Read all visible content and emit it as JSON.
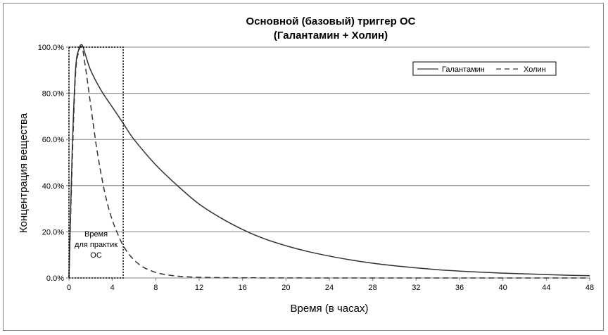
{
  "chart_data": {
    "type": "line",
    "title": "Основной (базовый) триггер ОС",
    "subtitle": "(Галантамин + Холин)",
    "xlabel": "Время (в часах)",
    "ylabel": "Концентрация вещества",
    "xlim": [
      0,
      48
    ],
    "ylim": [
      0,
      100
    ],
    "x_ticks": [
      "0",
      "4",
      "8",
      "12",
      "16",
      "20",
      "24",
      "28",
      "32",
      "36",
      "40",
      "44",
      "48"
    ],
    "y_ticks": [
      "0.0%",
      "20.0%",
      "40.0%",
      "60.0%",
      "80.0%",
      "100.0%"
    ],
    "grid": "horizontal",
    "legend_position": "top-right",
    "series": [
      {
        "name": "Галантамин",
        "style": "solid",
        "color": "#333333",
        "x": [
          0,
          0.3,
          0.6,
          0.9,
          1.2,
          1.5,
          2,
          3,
          4,
          5,
          6,
          8,
          10,
          12,
          14,
          16,
          18,
          20,
          22,
          24,
          26,
          28,
          30,
          32,
          34,
          36,
          38,
          40,
          42,
          44,
          46,
          48
        ],
        "y": [
          0,
          55,
          90,
          99,
          101,
          97,
          90,
          81,
          74,
          67,
          60,
          49,
          40,
          32,
          26,
          21,
          17,
          14,
          11.5,
          9.5,
          7.8,
          6.4,
          5.3,
          4.4,
          3.6,
          3.0,
          2.5,
          2.1,
          1.8,
          1.5,
          1.2,
          1.0
        ]
      },
      {
        "name": "Холин",
        "style": "dashed",
        "color": "#333333",
        "x": [
          0,
          0.3,
          0.6,
          0.9,
          1.2,
          1.5,
          2,
          2.5,
          3,
          3.5,
          4,
          4.5,
          5,
          5.5,
          6,
          6.5,
          7,
          8,
          9,
          10,
          11,
          12,
          14,
          16,
          20,
          24,
          28,
          32,
          36,
          40,
          44,
          48
        ],
        "y": [
          0,
          50,
          88,
          98,
          100,
          92,
          75,
          58,
          44,
          33,
          25,
          19,
          14,
          10.5,
          7.8,
          5.8,
          4.3,
          2.4,
          1.4,
          0.8,
          0.5,
          0.3,
          0.15,
          0.08,
          0.03,
          0.01,
          0,
          0,
          0,
          0,
          0,
          0
        ]
      }
    ],
    "annotation": {
      "lines": [
        "Время",
        "для практик",
        "ОС"
      ],
      "x_range": [
        0,
        5
      ],
      "y_range": [
        0,
        100
      ],
      "style": "dotted box"
    }
  }
}
